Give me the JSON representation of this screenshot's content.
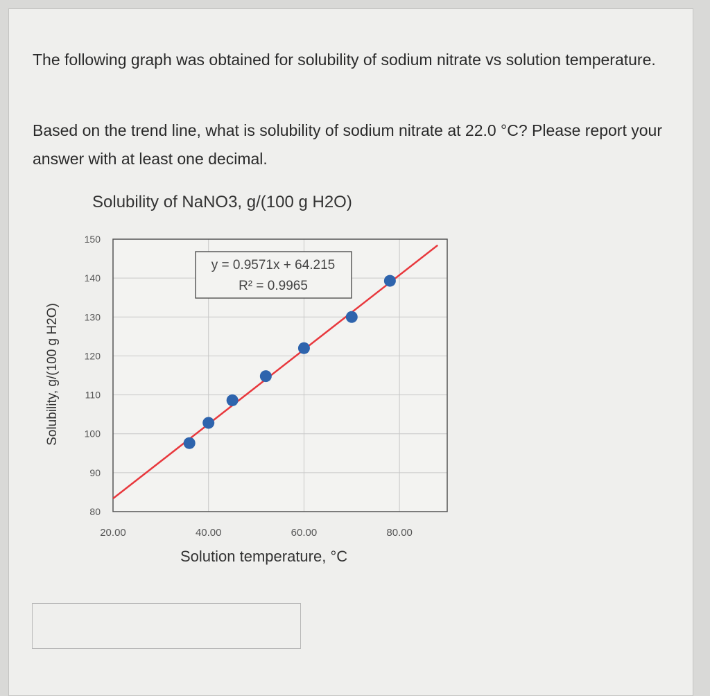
{
  "question": {
    "paragraph1": "The following graph was obtained for solubility of sodium nitrate vs solution temperature.",
    "paragraph2": "Based on the trend line, what is solubility of sodium nitrate at 22.0 °C? Please report your answer with at least one decimal."
  },
  "answer_input": {
    "value": ""
  },
  "chart_data": {
    "type": "scatter",
    "title": "Solubility of NaNO3, g/(100 g H2O)",
    "xlabel": "Solution temperature, °C",
    "ylabel": "Solubility, g/(100 g H2O)",
    "xlim": [
      20,
      90
    ],
    "ylim": [
      80,
      150
    ],
    "xticks": [
      "20.00",
      "40.00",
      "60.00",
      "80.00"
    ],
    "yticks": [
      "80",
      "90",
      "100",
      "110",
      "120",
      "130",
      "140",
      "150"
    ],
    "grid": true,
    "x": [
      36,
      40,
      45,
      52,
      60,
      70,
      78
    ],
    "y": [
      97.6,
      102.8,
      108.6,
      114.8,
      122.0,
      130.0,
      139.3
    ],
    "trendline": {
      "slope": 0.9571,
      "intercept": 64.215,
      "x_range": [
        20,
        88
      ],
      "equation": "y = 0.9571x + 64.215",
      "r2": "R² = 0.9965"
    },
    "colors": {
      "points": "#2e64ad",
      "trendline": "#e8383d"
    }
  }
}
